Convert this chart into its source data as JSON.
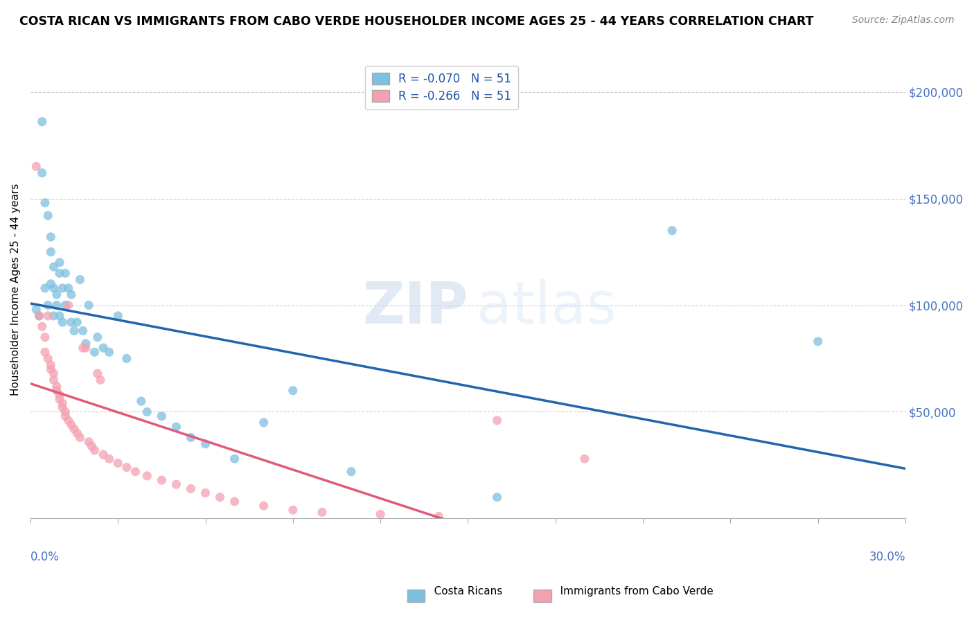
{
  "title": "COSTA RICAN VS IMMIGRANTS FROM CABO VERDE HOUSEHOLDER INCOME AGES 25 - 44 YEARS CORRELATION CHART",
  "source": "Source: ZipAtlas.com",
  "xlim": [
    0.0,
    0.3
  ],
  "ylim": [
    0,
    215000
  ],
  "legend_entry1": "R = -0.070   N = 51",
  "legend_entry2": "R = -0.266   N = 51",
  "legend_label1": "Costa Ricans",
  "legend_label2": "Immigrants from Cabo Verde",
  "blue_color": "#7fbfdf",
  "pink_color": "#f4a0b0",
  "blue_line_color": "#2166ac",
  "pink_line_color": "#e05a7a",
  "blue_x": [
    0.002,
    0.003,
    0.004,
    0.004,
    0.005,
    0.005,
    0.006,
    0.006,
    0.007,
    0.007,
    0.007,
    0.008,
    0.008,
    0.008,
    0.009,
    0.009,
    0.01,
    0.01,
    0.01,
    0.011,
    0.011,
    0.012,
    0.012,
    0.013,
    0.014,
    0.014,
    0.015,
    0.016,
    0.017,
    0.018,
    0.019,
    0.02,
    0.022,
    0.023,
    0.025,
    0.027,
    0.03,
    0.033,
    0.038,
    0.04,
    0.045,
    0.05,
    0.055,
    0.06,
    0.07,
    0.08,
    0.09,
    0.11,
    0.16,
    0.22,
    0.27
  ],
  "blue_y": [
    98000,
    95000,
    186000,
    162000,
    148000,
    108000,
    142000,
    100000,
    132000,
    125000,
    110000,
    118000,
    108000,
    95000,
    105000,
    100000,
    120000,
    115000,
    95000,
    108000,
    92000,
    115000,
    100000,
    108000,
    92000,
    105000,
    88000,
    92000,
    112000,
    88000,
    82000,
    100000,
    78000,
    85000,
    80000,
    78000,
    95000,
    75000,
    55000,
    50000,
    48000,
    43000,
    38000,
    35000,
    28000,
    45000,
    60000,
    22000,
    10000,
    135000,
    83000
  ],
  "pink_x": [
    0.002,
    0.003,
    0.004,
    0.005,
    0.005,
    0.006,
    0.006,
    0.007,
    0.007,
    0.008,
    0.008,
    0.009,
    0.009,
    0.01,
    0.01,
    0.011,
    0.011,
    0.012,
    0.012,
    0.013,
    0.013,
    0.014,
    0.015,
    0.016,
    0.017,
    0.018,
    0.019,
    0.02,
    0.021,
    0.022,
    0.023,
    0.024,
    0.025,
    0.027,
    0.03,
    0.033,
    0.036,
    0.04,
    0.045,
    0.05,
    0.055,
    0.06,
    0.065,
    0.07,
    0.08,
    0.09,
    0.1,
    0.12,
    0.14,
    0.16,
    0.19
  ],
  "pink_y": [
    165000,
    95000,
    90000,
    85000,
    78000,
    95000,
    75000,
    72000,
    70000,
    68000,
    65000,
    62000,
    60000,
    58000,
    56000,
    54000,
    52000,
    50000,
    48000,
    100000,
    46000,
    44000,
    42000,
    40000,
    38000,
    80000,
    80000,
    36000,
    34000,
    32000,
    68000,
    65000,
    30000,
    28000,
    26000,
    24000,
    22000,
    20000,
    18000,
    16000,
    14000,
    12000,
    10000,
    8000,
    6000,
    4000,
    3000,
    2000,
    1000,
    46000,
    28000
  ],
  "yticks": [
    0,
    50000,
    100000,
    150000,
    200000
  ],
  "ytick_labels": [
    "",
    "$50,000",
    "$100,000",
    "$150,000",
    "$200,000"
  ]
}
